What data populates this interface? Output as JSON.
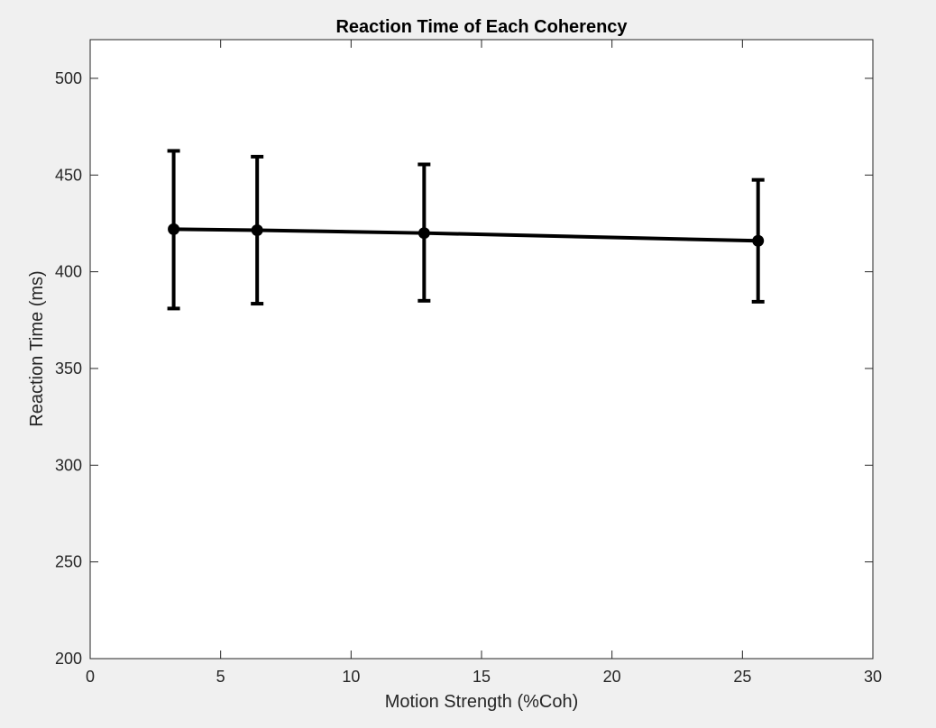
{
  "colors": {
    "figure_background": "#f0f0f0",
    "axes_background": "#ffffff",
    "axis": "#262626",
    "series": "#000000"
  },
  "chart_data": {
    "type": "line",
    "title": "Reaction Time of Each Coherency",
    "xlabel": "Motion Strength (%Coh)",
    "ylabel": "Reaction Time (ms)",
    "xlim": [
      0,
      30
    ],
    "ylim": [
      200,
      520
    ],
    "xticks": [
      0,
      5,
      10,
      15,
      20,
      25,
      30
    ],
    "yticks": [
      200,
      250,
      300,
      350,
      400,
      450,
      500
    ],
    "grid": false,
    "series": [
      {
        "x": [
          3.2,
          6.4,
          12.8,
          25.6
        ],
        "y": [
          422,
          421.5,
          420,
          416
        ],
        "error_lower": [
          381,
          383.5,
          385,
          384.5
        ],
        "error_upper": [
          462.5,
          459.5,
          455.5,
          447.5
        ],
        "marker": "circle",
        "errorbars": true
      }
    ]
  }
}
